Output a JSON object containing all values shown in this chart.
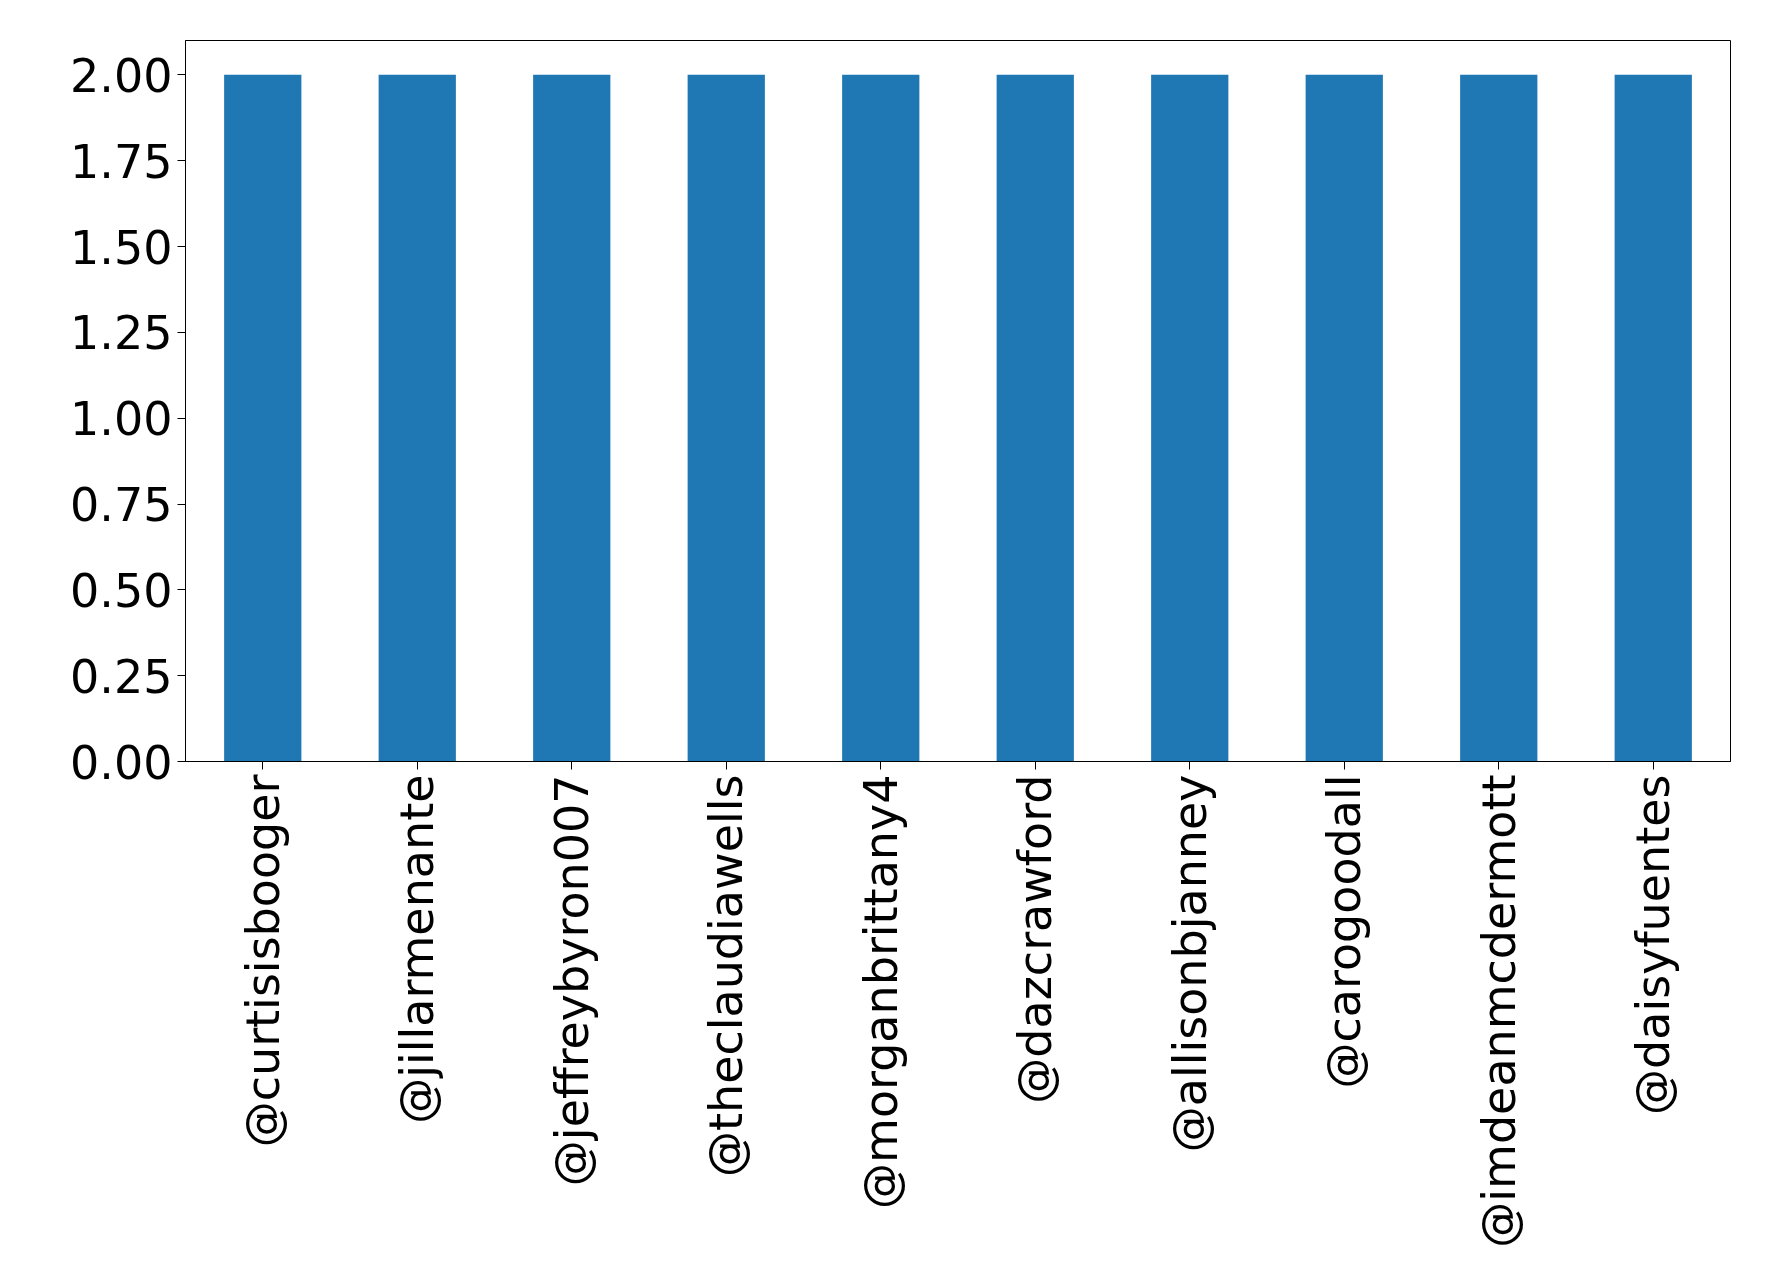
{
  "chart_data": {
    "type": "bar",
    "categories": [
      "@curtisisbooger",
      "@jillarmenante",
      "@jeffreybyron007",
      "@theclaudiawells",
      "@morganbrittany4",
      "@dazcrawford",
      "@allisonbjanney",
      "@carogoodall",
      "@imdeanmcdermott",
      "@daisyfuentes"
    ],
    "values": [
      2,
      2,
      2,
      2,
      2,
      2,
      2,
      2,
      2,
      2
    ],
    "color": "#1f77b4",
    "ylim": [
      0,
      2.1
    ],
    "yticks": [
      {
        "value": 0,
        "label": "0.00"
      },
      {
        "value": 0.25,
        "label": "0.25"
      },
      {
        "value": 0.5,
        "label": "0.50"
      },
      {
        "value": 0.75,
        "label": "0.75"
      },
      {
        "value": 1,
        "label": "1.00"
      },
      {
        "value": 1.25,
        "label": "1.25"
      },
      {
        "value": 1.5,
        "label": "1.50"
      },
      {
        "value": 1.75,
        "label": "1.75"
      },
      {
        "value": 2,
        "label": "2.00"
      }
    ],
    "grid": false
  }
}
